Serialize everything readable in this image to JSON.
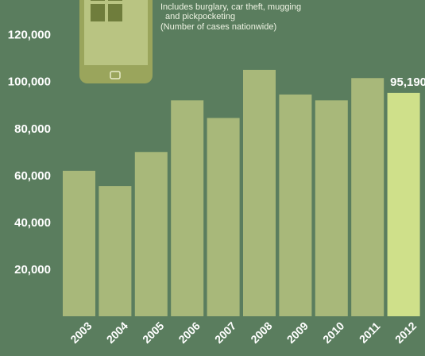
{
  "colors": {
    "background": "#5a7d5e",
    "bar": "#a8b87a",
    "highlight_bar": "#cfe08a",
    "icon": "#9aa55c",
    "icon_tile": "#6f7d3c"
  },
  "icon": "smartphone-icon",
  "note": {
    "line1": "Includes burglary, car theft, mugging",
    "line2": "and pickpocketing",
    "line3": "(Number of cases nationwide)"
  },
  "chart_data": {
    "type": "bar",
    "categories": [
      "2003",
      "2004",
      "2005",
      "2006",
      "2007",
      "2008",
      "2009",
      "2010",
      "2011",
      "2012"
    ],
    "values": [
      62000,
      55500,
      70000,
      92000,
      84500,
      105000,
      94500,
      92000,
      101500,
      95190
    ],
    "highlight_index": 9,
    "data_labels": {
      "9": "95,190"
    },
    "y_ticks": [
      "20,000",
      "40,000",
      "60,000",
      "80,000",
      "100,000",
      "120,000"
    ],
    "ylim": [
      0,
      128000
    ],
    "title": "",
    "xlabel": "",
    "ylabel": "",
    "grid": false
  }
}
